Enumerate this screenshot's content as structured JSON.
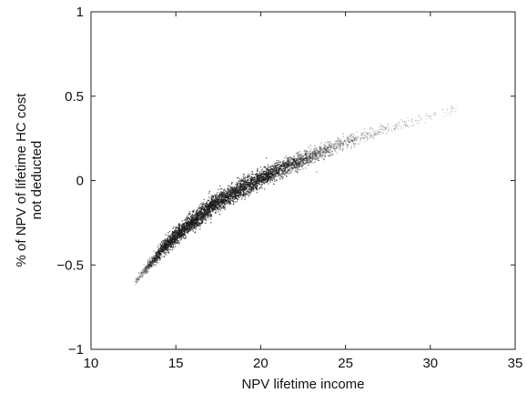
{
  "chart_data": {
    "type": "scatter",
    "title": "",
    "xlabel": "NPV lifetime income",
    "ylabel_lines": [
      "% of NPV of lifetime HC cost",
      "not deducted"
    ],
    "xlim": [
      10,
      35
    ],
    "ylim": [
      -1,
      1
    ],
    "xticks": [
      10,
      15,
      20,
      25,
      30,
      35
    ],
    "yticks": [
      -1,
      -0.5,
      0,
      0.5,
      1
    ],
    "xtick_labels": [
      "10",
      "15",
      "20",
      "25",
      "30",
      "35"
    ],
    "ytick_labels": [
      "−1",
      "−0.5",
      "0",
      "0.5",
      "1"
    ],
    "grid": false,
    "legend": false,
    "marker_color": "#1a1a1a",
    "series": [
      {
        "x": [
          12.6,
          13.2,
          13.7,
          14.2,
          14.7,
          15.2,
          15.8,
          16.3,
          16.9,
          17.4,
          18.0,
          18.6,
          19.2,
          19.8,
          20.4,
          21.0,
          21.7,
          22.4,
          23.1,
          23.8,
          24.6,
          25.4,
          26.3,
          27.2,
          28.2,
          29.3,
          30.4,
          31.6
        ],
        "y": [
          -0.6,
          -0.53,
          -0.47,
          -0.41,
          -0.36,
          -0.31,
          -0.26,
          -0.22,
          -0.17,
          -0.13,
          -0.1,
          -0.06,
          -0.03,
          0.0,
          0.03,
          0.06,
          0.09,
          0.12,
          0.15,
          0.18,
          0.21,
          0.24,
          0.27,
          0.3,
          0.33,
          0.36,
          0.39,
          0.43
        ],
        "spread": [
          0.02,
          0.03,
          0.035,
          0.04,
          0.045,
          0.05,
          0.05,
          0.055,
          0.055,
          0.055,
          0.055,
          0.055,
          0.055,
          0.05,
          0.05,
          0.05,
          0.05,
          0.045,
          0.045,
          0.045,
          0.04,
          0.04,
          0.035,
          0.035,
          0.03,
          0.03,
          0.025,
          0.02
        ],
        "density": [
          0.15,
          0.35,
          0.6,
          0.85,
          0.95,
          1.0,
          1.0,
          1.0,
          0.98,
          0.95,
          0.92,
          0.9,
          0.9,
          0.88,
          0.85,
          0.8,
          0.72,
          0.62,
          0.5,
          0.4,
          0.32,
          0.25,
          0.18,
          0.13,
          0.09,
          0.06,
          0.04,
          0.02
        ]
      }
    ]
  }
}
